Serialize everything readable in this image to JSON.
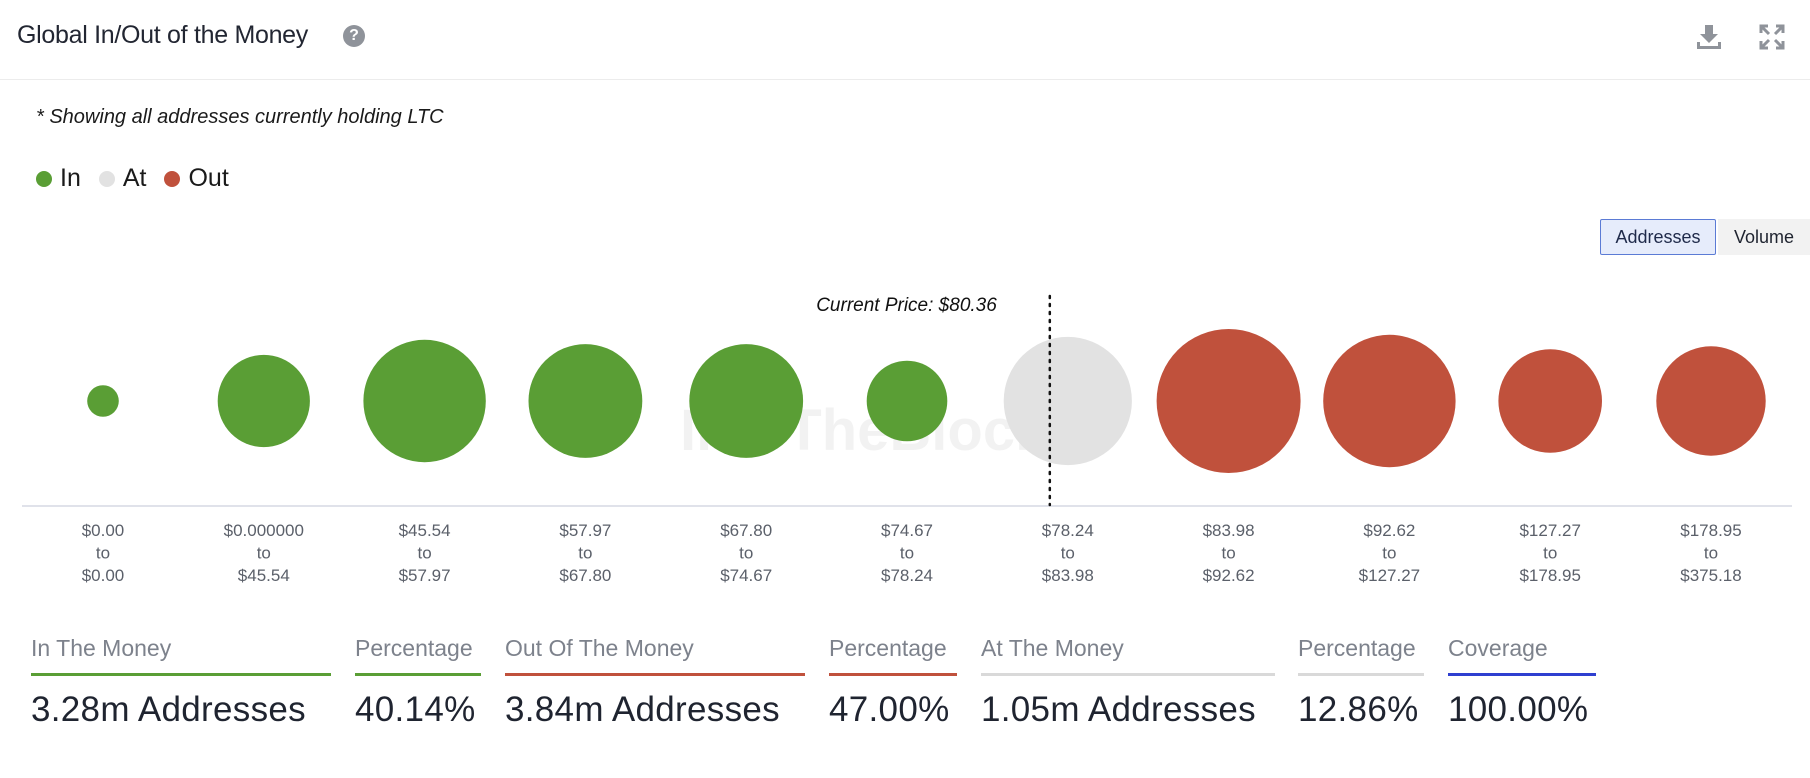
{
  "header": {
    "title": "Global In/Out of the Money",
    "help_icon": "question-circle-icon",
    "download_icon": "download-icon",
    "expand_icon": "expand-icon"
  },
  "note": "* Showing all addresses currently holding LTC",
  "legend": [
    {
      "label": "In",
      "color": "#5a9e35"
    },
    {
      "label": "At",
      "color": "#e2e2e2"
    },
    {
      "label": "Out",
      "color": "#c0513c"
    }
  ],
  "toggle": {
    "addresses": "Addresses",
    "volume": "Volume",
    "selected": "Addresses"
  },
  "chart_data": {
    "type": "bubble",
    "current_price_label": "Current Price: $80.36",
    "current_price": 80.36,
    "watermark": "IntoTheBlock",
    "colors": {
      "In": "#5a9e35",
      "At": "#e2e2e2",
      "Out": "#c0513c"
    },
    "buckets": [
      {
        "from": "$0.00",
        "to": "$0.00",
        "status": "In",
        "relative_size": 0.22
      },
      {
        "from": "$0.000000",
        "to": "$45.54",
        "status": "In",
        "relative_size": 0.64
      },
      {
        "from": "$45.54",
        "to": "$57.97",
        "status": "In",
        "relative_size": 0.85
      },
      {
        "from": "$57.97",
        "to": "$67.80",
        "status": "In",
        "relative_size": 0.79
      },
      {
        "from": "$67.80",
        "to": "$74.67",
        "status": "In",
        "relative_size": 0.79
      },
      {
        "from": "$74.67",
        "to": "$78.24",
        "status": "In",
        "relative_size": 0.56
      },
      {
        "from": "$78.24",
        "to": "$83.98",
        "status": "At",
        "relative_size": 0.89
      },
      {
        "from": "$83.98",
        "to": "$92.62",
        "status": "Out",
        "relative_size": 1.0
      },
      {
        "from": "$92.62",
        "to": "$127.27",
        "status": "Out",
        "relative_size": 0.92
      },
      {
        "from": "$127.27",
        "to": "$178.95",
        "status": "Out",
        "relative_size": 0.72
      },
      {
        "from": "$178.95",
        "to": "$375.18",
        "status": "Out",
        "relative_size": 0.76
      }
    ],
    "connector": "to"
  },
  "stats": [
    {
      "label": "In The Money",
      "value": "3.28m Addresses",
      "color": "#5a9e35"
    },
    {
      "label": "Percentage",
      "value": "40.14%",
      "color": "#5a9e35"
    },
    {
      "label": "Out Of The Money",
      "value": "3.84m Addresses",
      "color": "#c0513c"
    },
    {
      "label": "Percentage",
      "value": "47.00%",
      "color": "#c0513c"
    },
    {
      "label": "At The Money",
      "value": "1.05m Addresses",
      "color": "#d9d9d9"
    },
    {
      "label": "Percentage",
      "value": "12.86%",
      "color": "#d9d9d9"
    },
    {
      "label": "Coverage",
      "value": "100.00%",
      "color": "#2f3fd0"
    }
  ]
}
